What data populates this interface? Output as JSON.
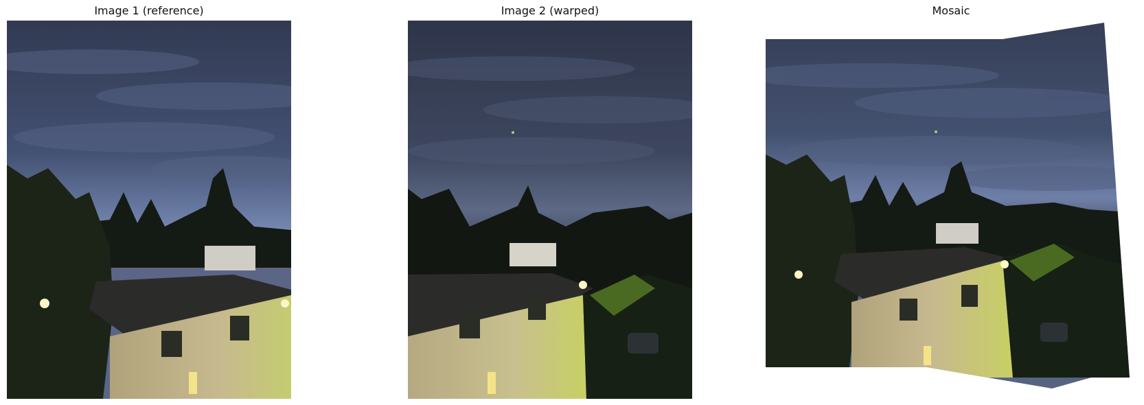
{
  "figure": {
    "panels": [
      {
        "title": "Image 1 (reference)"
      },
      {
        "title": "Image 2 (warped)"
      },
      {
        "title": "Mosaic"
      }
    ]
  },
  "colors": {
    "sky_top": "#3b4460",
    "sky_horizon": "#6f80a8",
    "trees": "#141a14",
    "roof": "#2b2c2a",
    "wall_lit": "#c9ba8e",
    "wall_green": "#b7c46a",
    "window_glow": "#f3e48a",
    "porch_light": "#fff6c8"
  }
}
